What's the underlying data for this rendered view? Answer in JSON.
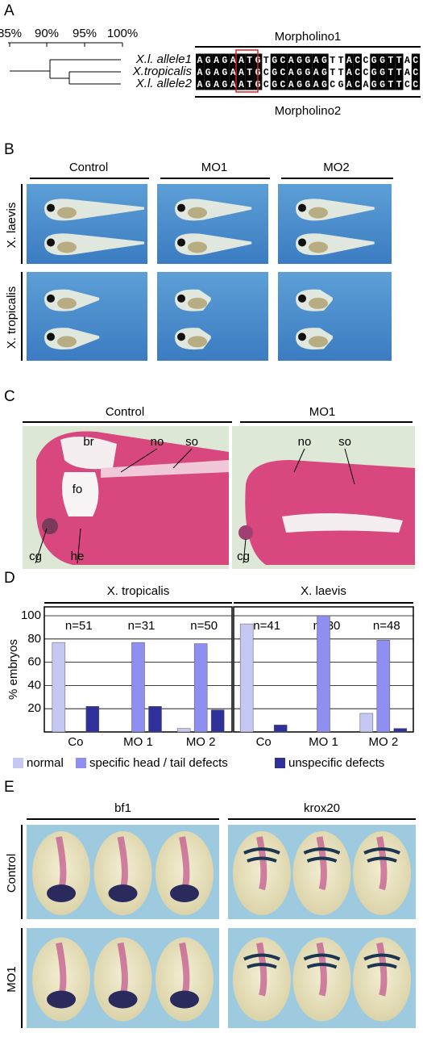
{
  "panel_a": {
    "label": "A",
    "scale_ticks": [
      "85%",
      "90%",
      "95%",
      "100%"
    ],
    "species": [
      "X.l. allele1",
      "X.tropicalis",
      "X.l. allele2"
    ],
    "sequences": [
      "AGAGAATGTGCAGGAGTTACCGGTTAC",
      "AGAGAATGCGCAGGAGTTACCGGTTAC",
      "AGAGAATGCGCAGGAGCGACAGGTTCC"
    ],
    "morpholino1": "Morpholino1",
    "morpholino2": "Morpholino2"
  },
  "panel_b": {
    "label": "B",
    "columns": [
      "Control",
      "MO1",
      "MO2"
    ],
    "rows": [
      "X. laevis",
      "X. tropicalis"
    ]
  },
  "panel_c": {
    "label": "C",
    "columns": [
      "Control",
      "MO1"
    ],
    "control_labels": [
      "br",
      "no",
      "so",
      "fo",
      "cg",
      "he"
    ],
    "mo1_labels": [
      "no",
      "so",
      "cg"
    ]
  },
  "panel_d": {
    "label": "D"
  },
  "chart_data": [
    {
      "type": "bar",
      "title": "X. tropicalis",
      "y_label": "% embryos",
      "categories": [
        "Co",
        "MO 1",
        "MO 2"
      ],
      "annotations": [
        "n=51",
        "n=31",
        "n=50"
      ],
      "ylim": [
        0,
        100
      ],
      "yticks": [
        20,
        40,
        60,
        80,
        100
      ],
      "grid": true,
      "series": [
        {
          "name": "normal",
          "color": "#c6c8f4",
          "values": [
            77,
            0,
            3
          ]
        },
        {
          "name": "specific head / tail defects",
          "color": "#8e8ff0",
          "values": [
            0,
            77,
            76
          ]
        },
        {
          "name": "unspecific defects",
          "color": "#30309a",
          "values": [
            22,
            22,
            19
          ]
        }
      ]
    },
    {
      "type": "bar",
      "title": "X. laevis",
      "categories": [
        "Co",
        "MO 1",
        "MO 2"
      ],
      "annotations": [
        "n=41",
        "n=30",
        "n=48"
      ],
      "ylim": [
        0,
        100
      ],
      "yticks": [
        20,
        40,
        60,
        80,
        100
      ],
      "grid": true,
      "series": [
        {
          "color": "#c6c8f4",
          "values": [
            93,
            0,
            16
          ]
        },
        {
          "color": "#8e8ff0",
          "values": [
            0,
            100,
            79
          ]
        },
        {
          "color": "#30309a",
          "values": [
            6,
            0,
            3
          ]
        }
      ]
    }
  ],
  "panel_e": {
    "label": "E",
    "columns": [
      "bf1",
      "krox20"
    ],
    "rows": [
      "Control",
      "MO1"
    ]
  }
}
